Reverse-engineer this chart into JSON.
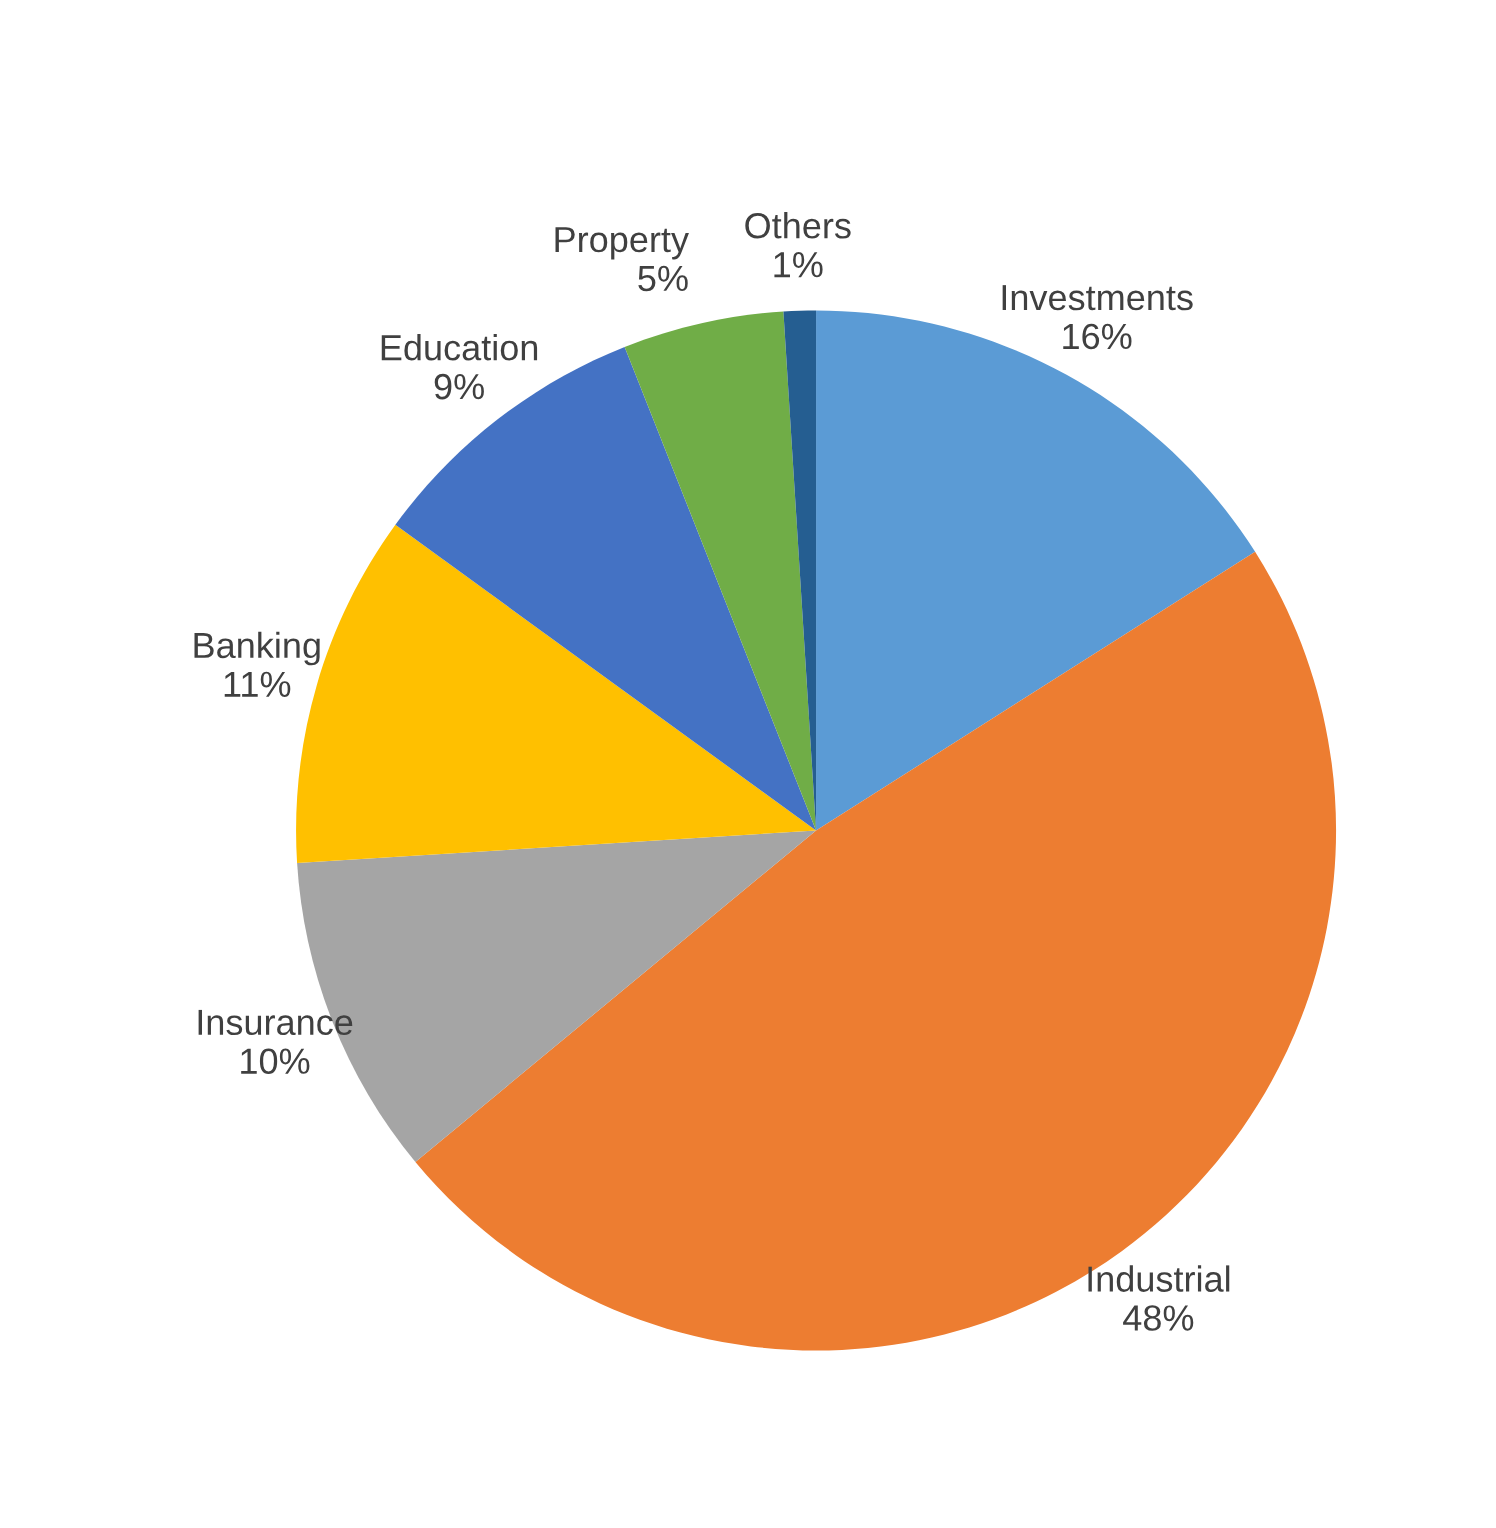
{
  "chart_data": {
    "type": "pie",
    "categories": [
      "Investments",
      "Industrial",
      "Insurance",
      "Banking",
      "Education",
      "Property",
      "Others"
    ],
    "values": [
      16,
      48,
      10,
      11,
      9,
      5,
      1
    ],
    "value_labels": [
      "16%",
      "48%",
      "10%",
      "11%",
      "9%",
      "5%",
      "1%"
    ],
    "colors": [
      "#5b9bd5",
      "#ed7d31",
      "#a5a5a5",
      "#ffc000",
      "#4472c4",
      "#70ad47",
      "#255e91"
    ],
    "legend": false
  }
}
